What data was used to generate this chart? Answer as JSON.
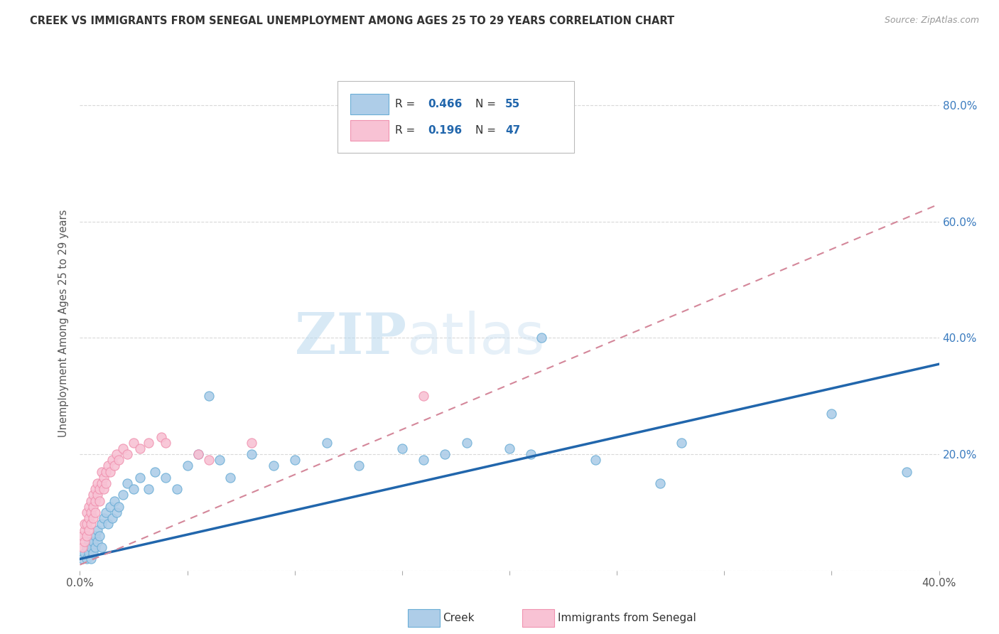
{
  "title": "CREEK VS IMMIGRANTS FROM SENEGAL UNEMPLOYMENT AMONG AGES 25 TO 29 YEARS CORRELATION CHART",
  "source": "Source: ZipAtlas.com",
  "ylabel": "Unemployment Among Ages 25 to 29 years",
  "creek_R": 0.466,
  "creek_N": 55,
  "senegal_R": 0.196,
  "senegal_N": 47,
  "xmin": 0.0,
  "xmax": 0.4,
  "ymin": 0.0,
  "ymax": 0.85,
  "x_ticks": [
    0.0,
    0.05,
    0.1,
    0.15,
    0.2,
    0.25,
    0.3,
    0.35,
    0.4
  ],
  "x_tick_labels_show": [
    "0.0%",
    "",
    "",
    "",
    "",
    "",
    "",
    "",
    "40.0%"
  ],
  "y_ticks": [
    0.0,
    0.2,
    0.4,
    0.6,
    0.8
  ],
  "y_right_labels": [
    "",
    "20.0%",
    "40.0%",
    "60.0%",
    "80.0%"
  ],
  "watermark_zip": "ZIP",
  "watermark_atlas": "atlas",
  "creek_color_edge": "#6baed6",
  "creek_color_fill": "#aecde8",
  "senegal_color_edge": "#f093b0",
  "senegal_color_fill": "#f8c2d4",
  "trend_creek_color": "#2166ac",
  "trend_senegal_color": "#d4879a",
  "background_color": "#ffffff",
  "grid_color": "#d9d9d9",
  "creek_trend_x0": 0.0,
  "creek_trend_y0": 0.02,
  "creek_trend_x1": 0.4,
  "creek_trend_y1": 0.355,
  "senegal_trend_x0": 0.0,
  "senegal_trend_y0": 0.01,
  "senegal_trend_x1": 0.4,
  "senegal_trend_y1": 0.63,
  "creek_x": [
    0.001,
    0.002,
    0.003,
    0.003,
    0.004,
    0.004,
    0.005,
    0.005,
    0.006,
    0.006,
    0.007,
    0.007,
    0.008,
    0.008,
    0.009,
    0.01,
    0.01,
    0.011,
    0.012,
    0.013,
    0.014,
    0.015,
    0.016,
    0.017,
    0.018,
    0.02,
    0.022,
    0.025,
    0.028,
    0.032,
    0.035,
    0.04,
    0.045,
    0.05,
    0.055,
    0.06,
    0.065,
    0.07,
    0.08,
    0.09,
    0.1,
    0.115,
    0.13,
    0.15,
    0.16,
    0.17,
    0.18,
    0.2,
    0.21,
    0.215,
    0.24,
    0.27,
    0.28,
    0.35,
    0.385
  ],
  "creek_y": [
    0.02,
    0.03,
    0.04,
    0.02,
    0.05,
    0.03,
    0.04,
    0.02,
    0.05,
    0.03,
    0.06,
    0.04,
    0.07,
    0.05,
    0.06,
    0.08,
    0.04,
    0.09,
    0.1,
    0.08,
    0.11,
    0.09,
    0.12,
    0.1,
    0.11,
    0.13,
    0.15,
    0.14,
    0.16,
    0.14,
    0.17,
    0.16,
    0.14,
    0.18,
    0.2,
    0.3,
    0.19,
    0.16,
    0.2,
    0.18,
    0.19,
    0.22,
    0.18,
    0.21,
    0.19,
    0.2,
    0.22,
    0.21,
    0.2,
    0.4,
    0.19,
    0.15,
    0.22,
    0.27,
    0.17
  ],
  "senegal_x": [
    0.001,
    0.001,
    0.002,
    0.002,
    0.002,
    0.003,
    0.003,
    0.003,
    0.004,
    0.004,
    0.004,
    0.005,
    0.005,
    0.005,
    0.006,
    0.006,
    0.006,
    0.007,
    0.007,
    0.007,
    0.008,
    0.008,
    0.009,
    0.009,
    0.01,
    0.01,
    0.011,
    0.011,
    0.012,
    0.012,
    0.013,
    0.014,
    0.015,
    0.016,
    0.017,
    0.018,
    0.02,
    0.022,
    0.025,
    0.028,
    0.032,
    0.038,
    0.04,
    0.055,
    0.06,
    0.08,
    0.16
  ],
  "senegal_y": [
    0.04,
    0.06,
    0.05,
    0.07,
    0.08,
    0.06,
    0.08,
    0.1,
    0.07,
    0.09,
    0.11,
    0.08,
    0.1,
    0.12,
    0.09,
    0.11,
    0.13,
    0.1,
    0.12,
    0.14,
    0.13,
    0.15,
    0.12,
    0.14,
    0.15,
    0.17,
    0.14,
    0.16,
    0.15,
    0.17,
    0.18,
    0.17,
    0.19,
    0.18,
    0.2,
    0.19,
    0.21,
    0.2,
    0.22,
    0.21,
    0.22,
    0.23,
    0.22,
    0.2,
    0.19,
    0.22,
    0.3
  ]
}
